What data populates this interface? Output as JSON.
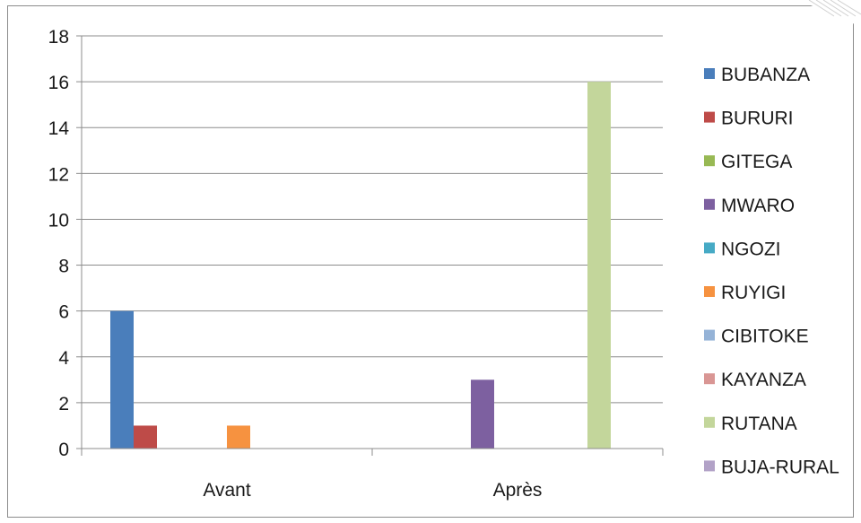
{
  "chart_data": {
    "type": "bar",
    "title": "",
    "xlabel": "",
    "ylabel": "",
    "ylim": [
      0,
      18
    ],
    "yticks": [
      0,
      2,
      4,
      6,
      8,
      10,
      12,
      14,
      16,
      18
    ],
    "grid": true,
    "legend_position": "right",
    "categories": [
      "Avant",
      "Après"
    ],
    "series": [
      {
        "name": "BUBANZA",
        "color": "#4a7ebb",
        "values": [
          6,
          0
        ]
      },
      {
        "name": "BURURI",
        "color": "#be4b48",
        "values": [
          1,
          0
        ]
      },
      {
        "name": "GITEGA",
        "color": "#98b954",
        "values": [
          0,
          0
        ]
      },
      {
        "name": "MWARO",
        "color": "#7d60a0",
        "values": [
          0,
          3
        ]
      },
      {
        "name": "NGOZI",
        "color": "#46aac5",
        "values": [
          0,
          0
        ]
      },
      {
        "name": "RUYIGI",
        "color": "#f69240",
        "values": [
          1,
          0
        ]
      },
      {
        "name": "CIBITOKE",
        "color": "#95b3d7",
        "values": [
          0,
          0
        ]
      },
      {
        "name": "KAYANZA",
        "color": "#d99694",
        "values": [
          0,
          0
        ]
      },
      {
        "name": "RUTANA",
        "color": "#c3d69b",
        "values": [
          0,
          16
        ]
      },
      {
        "name": "BUJA-RURAL",
        "color": "#b2a2c7",
        "values": [
          0,
          0
        ]
      }
    ]
  }
}
